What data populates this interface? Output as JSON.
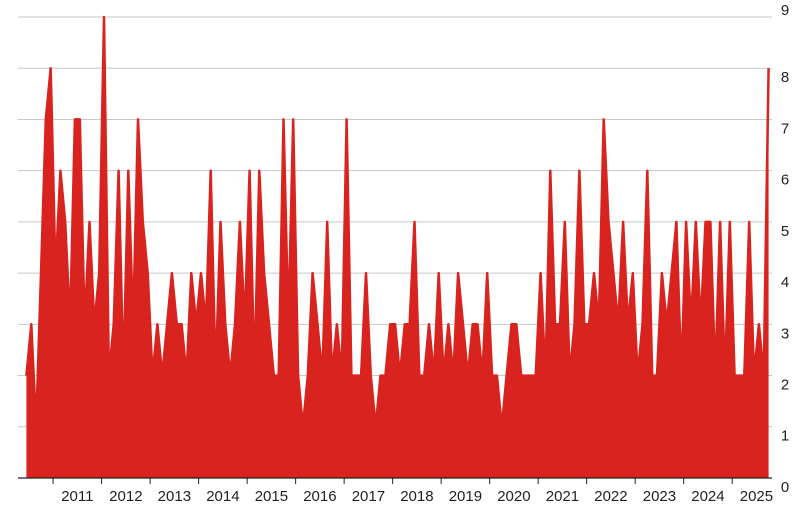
{
  "chart_data": {
    "type": "line",
    "color": "#d9231e",
    "grid": true,
    "xlim": [
      2010.4,
      2025.8
    ],
    "xticks": [
      2011,
      2012,
      2013,
      2014,
      2015,
      2016,
      2017,
      2018,
      2019,
      2020,
      2021,
      2022,
      2023,
      2024,
      2025
    ],
    "ylim": [
      0,
      9
    ],
    "yticks": [
      0,
      1,
      2,
      3,
      4,
      5,
      6,
      7,
      8,
      9
    ],
    "x": [
      2010.45,
      2010.55,
      2010.65,
      2010.75,
      2010.85,
      2010.95,
      2011.05,
      2011.15,
      2011.25,
      2011.35,
      2011.45,
      2011.55,
      2011.65,
      2011.75,
      2011.85,
      2011.95,
      2012.05,
      2012.15,
      2012.25,
      2012.35,
      2012.45,
      2012.55,
      2012.65,
      2012.75,
      2012.85,
      2012.95,
      2013.05,
      2013.15,
      2013.25,
      2013.35,
      2013.45,
      2013.55,
      2013.65,
      2013.75,
      2013.85,
      2013.95,
      2014.05,
      2014.15,
      2014.25,
      2014.35,
      2014.45,
      2014.55,
      2014.65,
      2014.75,
      2014.85,
      2014.95,
      2015.05,
      2015.15,
      2015.25,
      2015.35,
      2015.45,
      2015.55,
      2015.65,
      2015.75,
      2015.85,
      2015.95,
      2016.05,
      2016.15,
      2016.25,
      2016.35,
      2016.45,
      2016.55,
      2016.65,
      2016.75,
      2016.85,
      2016.95,
      2017.05,
      2017.15,
      2017.25,
      2017.35,
      2017.45,
      2017.55,
      2017.65,
      2017.75,
      2017.85,
      2017.95,
      2018.05,
      2018.15,
      2018.25,
      2018.35,
      2018.45,
      2018.55,
      2018.65,
      2018.75,
      2018.85,
      2018.95,
      2019.05,
      2019.15,
      2019.25,
      2019.35,
      2019.45,
      2019.55,
      2019.65,
      2019.75,
      2019.85,
      2019.95,
      2020.05,
      2020.15,
      2020.25,
      2020.35,
      2020.45,
      2020.55,
      2020.65,
      2020.75,
      2020.85,
      2020.95,
      2021.05,
      2021.15,
      2021.25,
      2021.35,
      2021.45,
      2021.55,
      2021.65,
      2021.75,
      2021.85,
      2021.95,
      2022.05,
      2022.15,
      2022.25,
      2022.35,
      2022.45,
      2022.55,
      2022.65,
      2022.75,
      2022.85,
      2022.95,
      2023.05,
      2023.15,
      2023.25,
      2023.35,
      2023.45,
      2023.55,
      2023.65,
      2023.75,
      2023.85,
      2023.95,
      2024.05,
      2024.15,
      2024.25,
      2024.35,
      2024.45,
      2024.55,
      2024.65,
      2024.75,
      2024.85,
      2024.95,
      2025.05,
      2025.15,
      2025.25,
      2025.35,
      2025.45,
      2025.55,
      2025.65,
      2025.75
    ],
    "values": [
      2,
      3,
      1,
      4,
      7,
      8,
      4,
      6,
      5,
      3,
      7,
      7,
      3,
      5,
      3,
      4,
      9,
      2,
      3,
      6,
      2,
      6,
      3,
      7,
      5,
      4,
      2,
      3,
      2,
      3,
      4,
      3,
      3,
      2,
      4,
      3,
      4,
      3,
      6,
      2,
      5,
      3,
      2,
      3,
      5,
      3,
      6,
      2,
      6,
      4,
      3,
      2,
      2,
      7,
      3,
      7,
      2,
      1,
      2,
      4,
      3,
      2,
      5,
      2,
      3,
      2,
      7,
      2,
      2,
      2,
      4,
      2,
      1,
      2,
      2,
      3,
      3,
      2,
      3,
      3,
      5,
      2,
      2,
      3,
      2,
      4,
      2,
      3,
      2,
      4,
      3,
      2,
      3,
      3,
      2,
      4,
      2,
      2,
      1,
      2,
      3,
      3,
      2,
      2,
      2,
      2,
      4,
      2,
      6,
      3,
      3,
      5,
      2,
      3,
      6,
      3,
      3,
      4,
      3,
      7,
      5,
      4,
      3,
      5,
      3,
      4,
      2,
      3,
      6,
      2,
      2,
      4,
      3,
      4,
      5,
      2,
      5,
      3,
      5,
      3,
      5,
      5,
      2,
      5,
      2,
      5,
      2,
      2,
      2,
      5,
      2,
      3,
      2,
      8
    ]
  }
}
